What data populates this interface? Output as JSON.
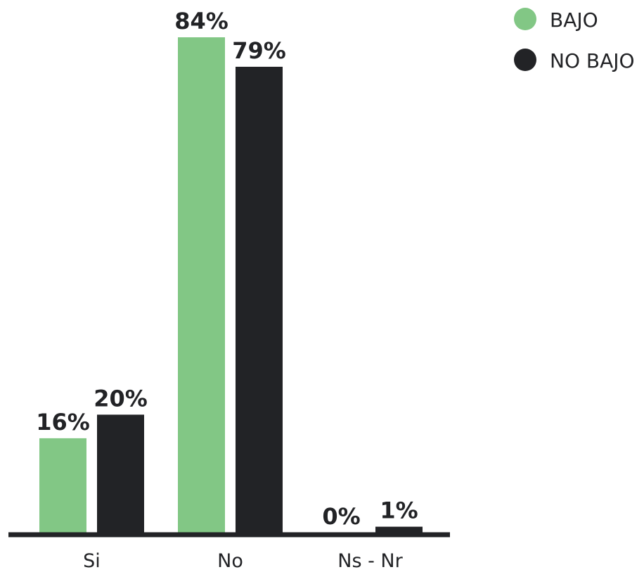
{
  "chart_data": {
    "type": "bar",
    "categories": [
      "Si",
      "No",
      "Ns - Nr"
    ],
    "series": [
      {
        "name": "BAJO",
        "values": [
          16,
          84,
          0
        ],
        "labels": [
          "16%",
          "84%",
          "0%"
        ],
        "color": "#82c785"
      },
      {
        "name": "NO BAJO",
        "values": [
          20,
          79,
          1
        ],
        "labels": [
          "20%",
          "79%",
          "1%"
        ],
        "color": "#222326"
      }
    ],
    "ylim": [
      0,
      100
    ],
    "grid": false,
    "legend": "top-right",
    "axis_color": "#222326"
  }
}
